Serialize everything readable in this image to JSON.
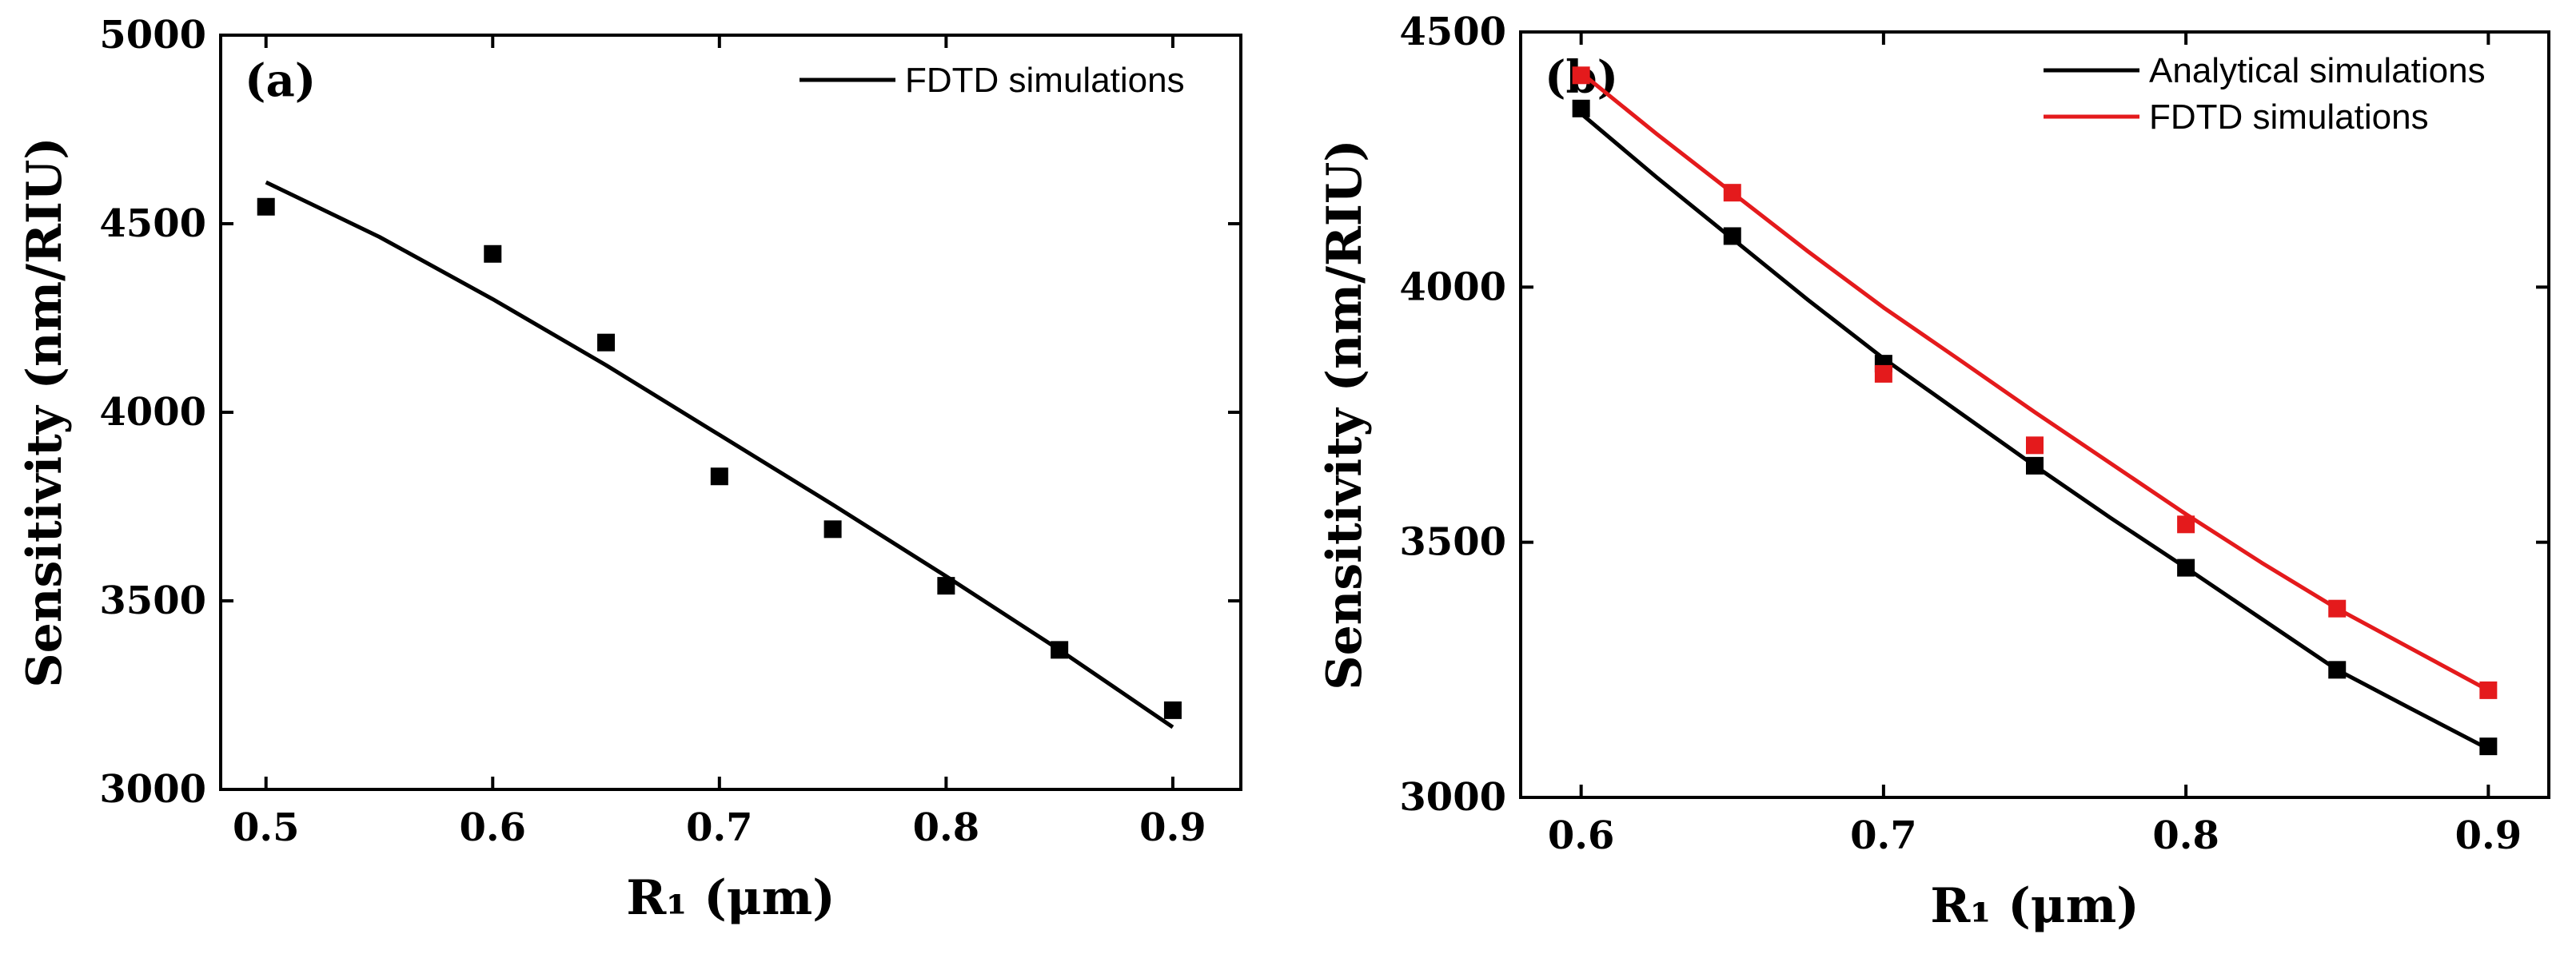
{
  "chart_data": [
    {
      "type": "line",
      "panel_label": "(a)",
      "title": "",
      "xlabel": "R₁ (μm)",
      "ylabel": "Sensitivity (nm/RIU)",
      "xlim": [
        0.48,
        0.93
      ],
      "ylim": [
        3000,
        5000
      ],
      "xticks": [
        0.5,
        0.6,
        0.7,
        0.8,
        0.9
      ],
      "xtick_labels": [
        "0.5",
        "0.6",
        "0.7",
        "0.8",
        "0.9"
      ],
      "yticks": [
        3000,
        3500,
        4000,
        4500,
        5000
      ],
      "ytick_labels": [
        "3000",
        "3500",
        "4000",
        "4500",
        "5000"
      ],
      "legend_position": "top-right",
      "series": [
        {
          "name": "FDTD simulations",
          "kind": "line",
          "color": "#000000",
          "x": [
            0.5,
            0.55,
            0.6,
            0.65,
            0.7,
            0.75,
            0.8,
            0.85,
            0.9
          ],
          "y": [
            4610,
            4465,
            4300,
            4125,
            3940,
            3755,
            3565,
            3370,
            3165
          ],
          "legend": true
        },
        {
          "name": "FDTD simulations (points)",
          "kind": "scatter",
          "color": "#000000",
          "x": [
            0.5,
            0.6,
            0.65,
            0.7,
            0.75,
            0.8,
            0.85,
            0.9
          ],
          "y": [
            4545,
            4420,
            4185,
            3830,
            3690,
            3540,
            3370,
            3210
          ],
          "legend": false
        }
      ]
    },
    {
      "type": "line",
      "panel_label": "(b)",
      "title": "",
      "xlabel": "R₁ (μm)",
      "ylabel": "Sensitivity (nm/RIU)",
      "xlim": [
        0.58,
        0.92
      ],
      "ylim": [
        3000,
        4500
      ],
      "xticks": [
        0.6,
        0.7,
        0.8,
        0.9
      ],
      "xtick_labels": [
        "0.6",
        "0.7",
        "0.8",
        "0.9"
      ],
      "yticks": [
        3000,
        3500,
        4000,
        4500
      ],
      "ytick_labels": [
        "3000",
        "3500",
        "4000",
        "4500"
      ],
      "legend_position": "top-right",
      "series": [
        {
          "name": "Analytical simulations",
          "kind": "line",
          "color": "#000000",
          "x": [
            0.6,
            0.625,
            0.65,
            0.675,
            0.7,
            0.725,
            0.75,
            0.775,
            0.8,
            0.825,
            0.85,
            0.875,
            0.9
          ],
          "y": [
            4340,
            4215,
            4095,
            3975,
            3860,
            3755,
            3650,
            3548,
            3450,
            3350,
            3250,
            3172,
            3095
          ],
          "legend": true
        },
        {
          "name": "FDTD simulations",
          "kind": "line",
          "color": "#e41a1c",
          "x": [
            0.6,
            0.625,
            0.65,
            0.675,
            0.7,
            0.725,
            0.75,
            0.775,
            0.8,
            0.825,
            0.85,
            0.875,
            0.9
          ],
          "y": [
            4420,
            4300,
            4185,
            4070,
            3960,
            3858,
            3755,
            3655,
            3555,
            3460,
            3370,
            3290,
            3210
          ],
          "legend": true
        },
        {
          "name": "Analytical simulations (points)",
          "kind": "scatter",
          "color": "#000000",
          "x": [
            0.6,
            0.65,
            0.7,
            0.75,
            0.8,
            0.85,
            0.9
          ],
          "y": [
            4350,
            4100,
            3850,
            3650,
            3450,
            3250,
            3100
          ],
          "legend": false
        },
        {
          "name": "FDTD simulations (points)",
          "kind": "scatter",
          "color": "#e41a1c",
          "x": [
            0.6,
            0.65,
            0.7,
            0.75,
            0.8,
            0.85,
            0.9
          ],
          "y": [
            4415,
            4185,
            3830,
            3690,
            3535,
            3370,
            3210
          ],
          "legend": false
        }
      ]
    }
  ]
}
